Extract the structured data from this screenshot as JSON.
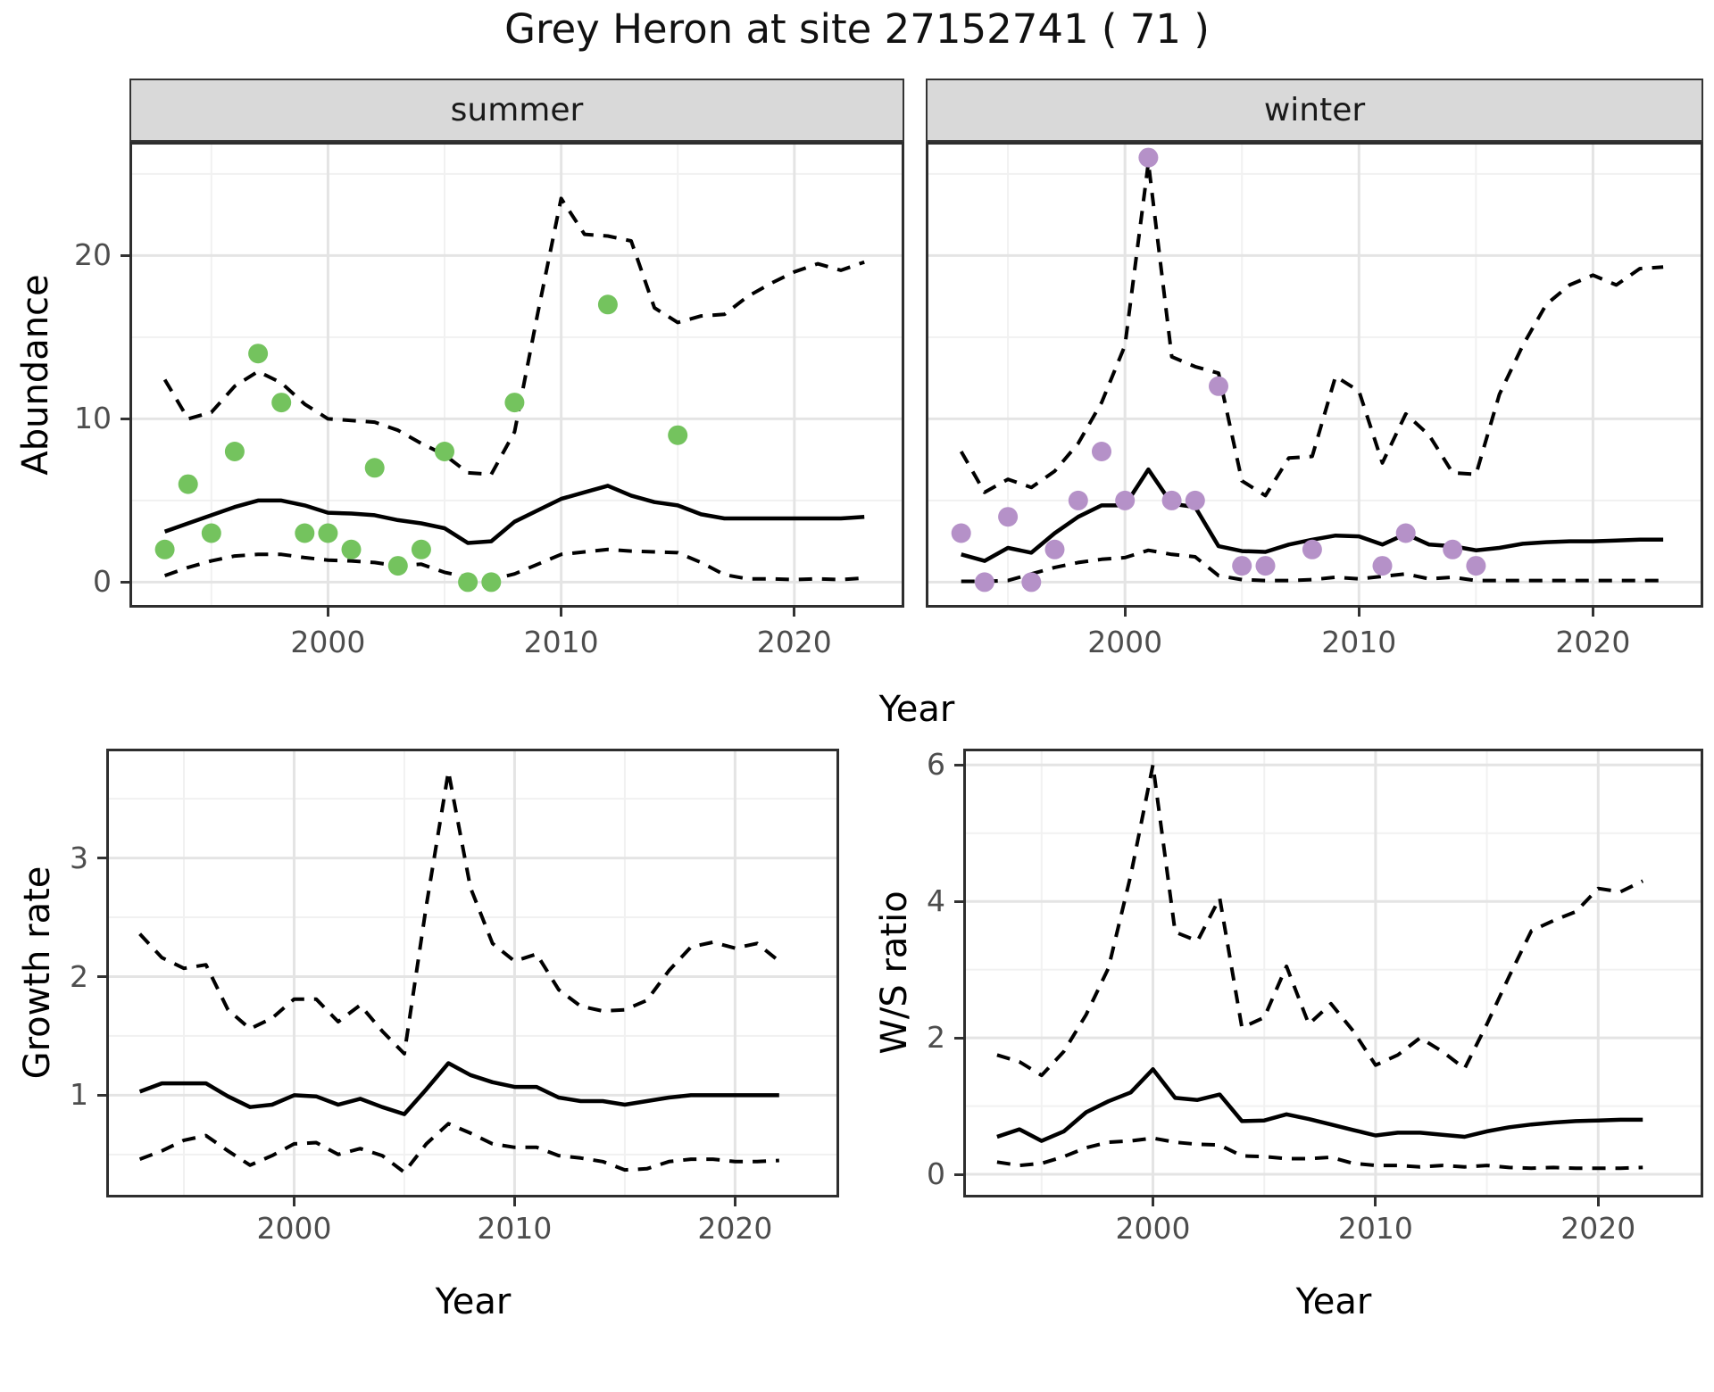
{
  "title": "Grey Heron at site 27152741 ( 71 )",
  "shared_xlabel": "Year",
  "colors": {
    "summer_points": "#74C35E",
    "winter_points": "#B591C8",
    "line": "#000000",
    "strip_background": "#d9d9d9",
    "tick_text": "#4d4d4d",
    "major_grid": "#e4e4e4",
    "minor_grid": "#f1f1f1",
    "panel_border": "#2e2e2e"
  },
  "chart_data": [
    {
      "id": "abundance-summer",
      "type": "line",
      "facet_label": "summer",
      "ylabel": "Abundance",
      "xlabel": "Year",
      "xlim": [
        1991.6,
        2024.6
      ],
      "ylim": [
        -1.4,
        26.8
      ],
      "x_ticks": [
        2000,
        2010,
        2020
      ],
      "x_minor": [
        1995,
        2005,
        2015,
        2025
      ],
      "y_ticks": [
        0,
        10,
        20
      ],
      "y_minor": [
        5,
        15,
        25
      ],
      "grid": true,
      "legend": "none",
      "x": [
        1993,
        1994,
        1995,
        1996,
        1997,
        1998,
        1999,
        2000,
        2001,
        2002,
        2003,
        2004,
        2005,
        2006,
        2007,
        2008,
        2009,
        2010,
        2011,
        2012,
        2013,
        2014,
        2015,
        2016,
        2017,
        2018,
        2019,
        2020,
        2021,
        2022,
        2023
      ],
      "series": [
        {
          "name": "upper-ci",
          "style": "dashed",
          "values": [
            12.4,
            10.0,
            10.4,
            12.0,
            12.9,
            12.2,
            10.9,
            10.0,
            9.9,
            9.8,
            9.3,
            8.5,
            7.8,
            6.7,
            6.6,
            9.2,
            16.5,
            23.5,
            21.3,
            21.2,
            20.9,
            16.8,
            15.9,
            16.3,
            16.4,
            17.5,
            18.3,
            19.0,
            19.5,
            19.1,
            19.6
          ]
        },
        {
          "name": "lower-ci",
          "style": "dashed",
          "values": [
            0.4,
            0.9,
            1.3,
            1.6,
            1.7,
            1.7,
            1.5,
            1.35,
            1.3,
            1.2,
            1.0,
            1.1,
            0.6,
            0.3,
            0.15,
            0.5,
            1.1,
            1.7,
            1.85,
            2.0,
            1.9,
            1.85,
            1.8,
            1.2,
            0.45,
            0.2,
            0.2,
            0.15,
            0.2,
            0.15,
            0.25
          ]
        },
        {
          "name": "median",
          "style": "solid",
          "values": [
            3.1,
            3.6,
            4.1,
            4.6,
            5.0,
            5.0,
            4.7,
            4.25,
            4.2,
            4.1,
            3.8,
            3.6,
            3.3,
            2.4,
            2.5,
            3.7,
            4.4,
            5.1,
            5.5,
            5.9,
            5.3,
            4.9,
            4.7,
            4.15,
            3.9,
            3.9,
            3.9,
            3.9,
            3.9,
            3.9,
            4.0
          ]
        }
      ],
      "points": {
        "name": "observed-counts",
        "color": "#74C35E",
        "xy": [
          [
            1993,
            2
          ],
          [
            1994,
            6
          ],
          [
            1995,
            3
          ],
          [
            1996,
            8
          ],
          [
            1997,
            14
          ],
          [
            1998,
            11
          ],
          [
            1999,
            3
          ],
          [
            2000,
            3
          ],
          [
            2001,
            2
          ],
          [
            2002,
            7
          ],
          [
            2003,
            1
          ],
          [
            2004,
            2
          ],
          [
            2005,
            8
          ],
          [
            2006,
            0
          ],
          [
            2007,
            0
          ],
          [
            2008,
            11
          ],
          [
            2012,
            17
          ],
          [
            2015,
            9
          ]
        ]
      }
    },
    {
      "id": "abundance-winter",
      "type": "line",
      "facet_label": "winter",
      "ylabel": "Abundance",
      "xlabel": "Year",
      "xlim": [
        1991.6,
        2024.6
      ],
      "ylim": [
        -1.4,
        26.8
      ],
      "x_ticks": [
        2000,
        2010,
        2020
      ],
      "x_minor": [
        1995,
        2005,
        2015,
        2025
      ],
      "y_ticks": [
        0,
        10,
        20
      ],
      "y_minor": [
        5,
        15,
        25
      ],
      "grid": true,
      "legend": "none",
      "x": [
        1993,
        1994,
        1995,
        1996,
        1997,
        1998,
        1999,
        2000,
        2001,
        2002,
        2003,
        2004,
        2005,
        2006,
        2007,
        2008,
        2009,
        2010,
        2011,
        2012,
        2013,
        2014,
        2015,
        2016,
        2017,
        2018,
        2019,
        2020,
        2021,
        2022,
        2023
      ],
      "series": [
        {
          "name": "upper-ci",
          "style": "dashed",
          "values": [
            8.0,
            5.5,
            6.3,
            5.8,
            6.8,
            8.5,
            11.0,
            14.5,
            25.7,
            13.8,
            13.2,
            12.8,
            6.2,
            5.3,
            7.6,
            7.7,
            12.6,
            11.7,
            7.3,
            10.3,
            9.0,
            6.7,
            6.6,
            11.5,
            14.5,
            17.0,
            18.2,
            18.8,
            18.2,
            19.2,
            19.3
          ]
        },
        {
          "name": "lower-ci",
          "style": "dashed",
          "values": [
            0.05,
            0.05,
            0.1,
            0.5,
            0.9,
            1.2,
            1.4,
            1.5,
            1.95,
            1.7,
            1.55,
            0.4,
            0.15,
            0.1,
            0.1,
            0.15,
            0.3,
            0.2,
            0.35,
            0.5,
            0.2,
            0.3,
            0.1,
            0.1,
            0.1,
            0.1,
            0.1,
            0.1,
            0.1,
            0.1,
            0.1
          ]
        },
        {
          "name": "median",
          "style": "solid",
          "values": [
            1.7,
            1.3,
            2.1,
            1.8,
            3.0,
            4.0,
            4.7,
            4.7,
            6.9,
            4.8,
            4.6,
            2.2,
            1.9,
            1.85,
            2.3,
            2.6,
            2.85,
            2.8,
            2.3,
            2.95,
            2.3,
            2.2,
            1.95,
            2.1,
            2.35,
            2.45,
            2.5,
            2.5,
            2.55,
            2.6,
            2.6
          ]
        }
      ],
      "points": {
        "name": "observed-counts",
        "color": "#B591C8",
        "xy": [
          [
            1993,
            3
          ],
          [
            1994,
            0
          ],
          [
            1995,
            4
          ],
          [
            1996,
            0
          ],
          [
            1997,
            2
          ],
          [
            1998,
            5
          ],
          [
            1999,
            8
          ],
          [
            2000,
            5
          ],
          [
            2001,
            26
          ],
          [
            2002,
            5
          ],
          [
            2003,
            5
          ],
          [
            2004,
            12
          ],
          [
            2005,
            1
          ],
          [
            2006,
            1
          ],
          [
            2008,
            2
          ],
          [
            2011,
            1
          ],
          [
            2012,
            3
          ],
          [
            2014,
            2
          ],
          [
            2015,
            1
          ]
        ]
      }
    },
    {
      "id": "growth-rate",
      "type": "line",
      "facet_label": "",
      "ylabel": "Growth rate",
      "xlabel": "Year",
      "xlim": [
        1991.6,
        2024.6
      ],
      "ylim": [
        0.16,
        3.9
      ],
      "x_ticks": [
        2000,
        2010,
        2020
      ],
      "x_minor": [
        1995,
        2005,
        2015,
        2025
      ],
      "y_ticks": [
        1,
        2,
        3
      ],
      "y_minor": [
        0.5,
        1.5,
        2.5,
        3.5
      ],
      "grid": true,
      "legend": "none",
      "x": [
        1993,
        1994,
        1995,
        1996,
        1997,
        1998,
        1999,
        2000,
        2001,
        2002,
        2003,
        2004,
        2005,
        2006,
        2007,
        2008,
        2009,
        2010,
        2011,
        2012,
        2013,
        2014,
        2015,
        2016,
        2017,
        2018,
        2019,
        2020,
        2021,
        2022
      ],
      "series": [
        {
          "name": "upper-ci",
          "style": "dashed",
          "values": [
            2.36,
            2.16,
            2.07,
            2.1,
            1.72,
            1.56,
            1.65,
            1.81,
            1.81,
            1.62,
            1.76,
            1.54,
            1.35,
            2.6,
            3.73,
            2.75,
            2.28,
            2.13,
            2.19,
            1.89,
            1.75,
            1.71,
            1.72,
            1.8,
            2.05,
            2.25,
            2.29,
            2.24,
            2.28,
            2.13
          ]
        },
        {
          "name": "lower-ci",
          "style": "dashed",
          "values": [
            0.46,
            0.53,
            0.62,
            0.66,
            0.53,
            0.41,
            0.49,
            0.59,
            0.6,
            0.5,
            0.55,
            0.49,
            0.35,
            0.59,
            0.76,
            0.68,
            0.59,
            0.56,
            0.56,
            0.49,
            0.47,
            0.44,
            0.37,
            0.38,
            0.44,
            0.46,
            0.46,
            0.44,
            0.44,
            0.45
          ]
        },
        {
          "name": "median",
          "style": "solid",
          "values": [
            1.03,
            1.1,
            1.1,
            1.1,
            0.99,
            0.9,
            0.92,
            1.0,
            0.99,
            0.92,
            0.97,
            0.9,
            0.84,
            1.05,
            1.27,
            1.17,
            1.11,
            1.07,
            1.07,
            0.98,
            0.95,
            0.95,
            0.92,
            0.95,
            0.98,
            1.0,
            1.0,
            1.0,
            1.0,
            1.0
          ]
        }
      ],
      "points": null
    },
    {
      "id": "ws-ratio",
      "type": "line",
      "facet_label": "",
      "ylabel": "W/S ratio",
      "xlabel": "Year",
      "xlim": [
        1991.6,
        2024.6
      ],
      "ylim": [
        -0.3,
        6.2
      ],
      "x_ticks": [
        2000,
        2010,
        2020
      ],
      "x_minor": [
        1995,
        2005,
        2015,
        2025
      ],
      "y_ticks": [
        0,
        2,
        4,
        6
      ],
      "y_minor": [
        1,
        3,
        5
      ],
      "grid": true,
      "legend": "none",
      "x": [
        1993,
        1994,
        1995,
        1996,
        1997,
        1998,
        1999,
        2000,
        2001,
        2002,
        2003,
        2004,
        2005,
        2006,
        2007,
        2008,
        2009,
        2010,
        2011,
        2012,
        2013,
        2014,
        2015,
        2016,
        2017,
        2018,
        2019,
        2020,
        2021,
        2022
      ],
      "series": [
        {
          "name": "upper-ci",
          "style": "dashed",
          "values": [
            1.75,
            1.65,
            1.45,
            1.8,
            2.34,
            3.02,
            4.38,
            6.0,
            3.55,
            3.42,
            4.05,
            2.15,
            2.3,
            3.05,
            2.2,
            2.5,
            2.1,
            1.6,
            1.75,
            2.0,
            1.8,
            1.55,
            2.2,
            2.9,
            3.57,
            3.72,
            3.85,
            4.19,
            4.14,
            4.3
          ]
        },
        {
          "name": "lower-ci",
          "style": "dashed",
          "values": [
            0.18,
            0.13,
            0.16,
            0.26,
            0.39,
            0.47,
            0.49,
            0.53,
            0.47,
            0.44,
            0.43,
            0.27,
            0.26,
            0.23,
            0.23,
            0.25,
            0.16,
            0.13,
            0.13,
            0.11,
            0.13,
            0.11,
            0.13,
            0.1,
            0.09,
            0.1,
            0.09,
            0.09,
            0.09,
            0.1
          ]
        },
        {
          "name": "median",
          "style": "solid",
          "values": [
            0.55,
            0.66,
            0.49,
            0.63,
            0.91,
            1.07,
            1.2,
            1.54,
            1.12,
            1.09,
            1.17,
            0.78,
            0.79,
            0.88,
            0.81,
            0.73,
            0.65,
            0.57,
            0.61,
            0.61,
            0.58,
            0.55,
            0.63,
            0.69,
            0.73,
            0.76,
            0.78,
            0.79,
            0.8,
            0.8
          ]
        }
      ],
      "points": null
    }
  ]
}
